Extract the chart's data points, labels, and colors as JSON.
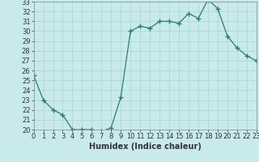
{
  "x": [
    0,
    1,
    2,
    3,
    4,
    5,
    6,
    7,
    8,
    9,
    10,
    11,
    12,
    13,
    14,
    15,
    16,
    17,
    18,
    19,
    20,
    21,
    22,
    23
  ],
  "y": [
    25.5,
    23.0,
    22.0,
    21.5,
    20.0,
    20.0,
    20.0,
    19.8,
    20.2,
    23.3,
    30.0,
    30.5,
    30.3,
    31.0,
    31.0,
    30.8,
    31.8,
    31.3,
    33.2,
    32.3,
    29.5,
    28.3,
    27.5,
    27.0
  ],
  "line_color": "#2e7d6e",
  "marker": "+",
  "marker_size": 4,
  "xlabel": "Humidex (Indice chaleur)",
  "bg_color": "#c8eaea",
  "grid_color": "#b0d8d8",
  "ylim": [
    20,
    33
  ],
  "xlim": [
    0,
    23
  ],
  "yticks": [
    20,
    21,
    22,
    23,
    24,
    25,
    26,
    27,
    28,
    29,
    30,
    31,
    32,
    33
  ],
  "xticks": [
    0,
    1,
    2,
    3,
    4,
    5,
    6,
    7,
    8,
    9,
    10,
    11,
    12,
    13,
    14,
    15,
    16,
    17,
    18,
    19,
    20,
    21,
    22,
    23
  ],
  "xlabel_fontsize": 7,
  "tick_fontsize": 6,
  "lw": 0.9
}
